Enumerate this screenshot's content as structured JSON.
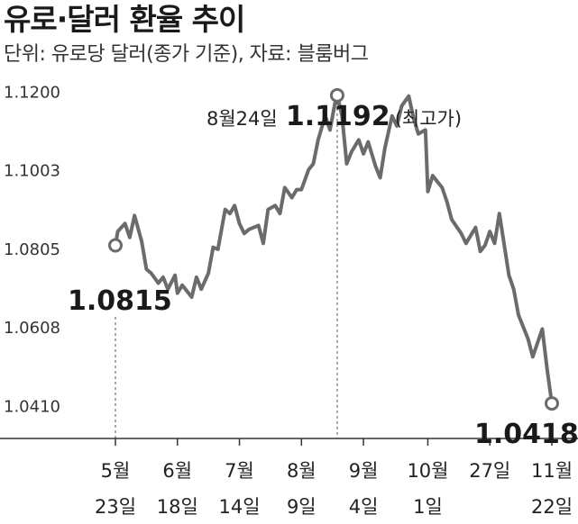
{
  "title": "유로·달러 환율 추이",
  "subtitle": "단위: 유로당 달러(종가 기준), 자료: 블룸버그",
  "chart_data": {
    "type": "line",
    "yticks": [
      "1.1200",
      "1.1003",
      "1.0805",
      "1.0608",
      "1.0410"
    ],
    "ylim": [
      1.033,
      1.1325
    ],
    "xtick_labels": [
      {
        "line1": "5월",
        "line2": "23일"
      },
      {
        "line1": "6월",
        "line2": "18일"
      },
      {
        "line1": "7월",
        "line2": "14일"
      },
      {
        "line1": "8월",
        "line2": "9일"
      },
      {
        "line1": "9월",
        "line2": "4일"
      },
      {
        "line1": "10월",
        "line2": "1일"
      },
      {
        "line1": "27일",
        "line2": ""
      },
      {
        "line1": "11월",
        "line2": "22일"
      }
    ],
    "x": [
      "5/23",
      "5/24",
      "5/27",
      "5/29",
      "5/31",
      "6/3",
      "6/5",
      "6/7",
      "6/10",
      "6/12",
      "6/14",
      "6/17",
      "6/18",
      "6/20",
      "6/24",
      "6/26",
      "6/28",
      "7/1",
      "7/3",
      "7/5",
      "7/8",
      "7/10",
      "7/12",
      "7/14",
      "7/16",
      "7/18",
      "7/22",
      "7/24",
      "7/26",
      "7/29",
      "7/31",
      "8/2",
      "8/5",
      "8/7",
      "8/9",
      "8/12",
      "8/14",
      "8/16",
      "8/19",
      "8/21",
      "8/23",
      "8/24",
      "8/26",
      "8/28",
      "8/30",
      "9/2",
      "9/4",
      "9/6",
      "9/9",
      "9/11",
      "9/13",
      "9/16",
      "9/18",
      "9/20",
      "9/23",
      "9/25",
      "9/27",
      "9/30",
      "10/1",
      "10/3",
      "10/7",
      "10/9",
      "10/11",
      "10/15",
      "10/17",
      "10/21",
      "10/23",
      "10/25",
      "10/27",
      "10/29",
      "10/31",
      "11/4",
      "11/6",
      "11/8",
      "11/12",
      "11/14",
      "11/18",
      "11/20",
      "11/22"
    ],
    "values": [
      1.0815,
      1.085,
      1.087,
      1.0835,
      1.089,
      1.0825,
      1.0755,
      1.0745,
      1.072,
      1.0735,
      1.0705,
      1.074,
      1.0695,
      1.0715,
      1.0685,
      1.0735,
      1.0705,
      1.0745,
      1.081,
      1.0805,
      1.0905,
      1.0895,
      1.0915,
      1.087,
      1.0845,
      1.0855,
      1.0865,
      1.082,
      1.0905,
      1.0915,
      1.0895,
      1.096,
      1.0935,
      1.0955,
      1.0955,
      1.1005,
      1.102,
      1.108,
      1.114,
      1.1105,
      1.117,
      1.1192,
      1.114,
      1.102,
      1.105,
      1.108,
      1.1045,
      1.1075,
      1.1015,
      1.0985,
      1.106,
      1.114,
      1.1115,
      1.1165,
      1.119,
      1.1135,
      1.1095,
      1.1105,
      1.095,
      1.099,
      1.096,
      1.0925,
      1.088,
      1.0845,
      1.082,
      1.086,
      1.08,
      1.0815,
      1.085,
      1.082,
      1.0895,
      1.074,
      1.0705,
      1.064,
      1.058,
      1.0535,
      1.0605,
      1.0505,
      1.0418
    ],
    "annotations": {
      "start": {
        "label": "1.0815"
      },
      "peak": {
        "prefix": "8월24일",
        "value": "1.1192",
        "suffix": "(최고가)"
      },
      "end": {
        "label": "1.0418"
      }
    },
    "line_color": "#6b6b6b",
    "grid": false
  }
}
